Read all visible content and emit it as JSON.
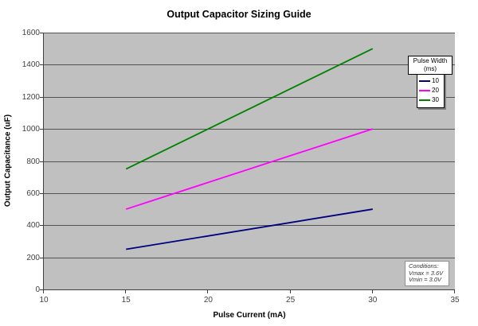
{
  "chart_data": {
    "type": "line",
    "title": "Output Capacitor Sizing Guide",
    "xlabel": "Pulse Current (mA)",
    "ylabel": "Output Capacitance (uF)",
    "xlim": [
      10,
      35
    ],
    "ylim": [
      0,
      1600
    ],
    "xticks": [
      10,
      15,
      20,
      25,
      30,
      35
    ],
    "yticks": [
      0,
      200,
      400,
      600,
      800,
      1000,
      1200,
      1400,
      1600
    ],
    "grid": "horizontal-only",
    "plot_bg_color": "#c0c0c0",
    "gridline_color": "#545454",
    "axis_color": "#3f3f3f",
    "tick_label_color": "#404040",
    "legend": {
      "title_line1": "Pulse Width",
      "title_line2": "(ms)",
      "position": "right-top",
      "entries": [
        {
          "label": "10",
          "color": "#000080"
        },
        {
          "label": "20",
          "color": "#ff00ff"
        },
        {
          "label": "30",
          "color": "#008000"
        }
      ]
    },
    "series": [
      {
        "name": "10",
        "color": "#000080",
        "points": [
          [
            15,
            250
          ],
          [
            30,
            500
          ]
        ]
      },
      {
        "name": "20",
        "color": "#ff00ff",
        "points": [
          [
            15,
            500
          ],
          [
            30,
            1000
          ]
        ]
      },
      {
        "name": "30",
        "color": "#008000",
        "points": [
          [
            15,
            750
          ],
          [
            30,
            1500
          ]
        ]
      }
    ],
    "annotation": {
      "lines": [
        "Conditions:",
        "Vmax = 3.6V",
        "Vmin = 3.0V"
      ]
    }
  }
}
